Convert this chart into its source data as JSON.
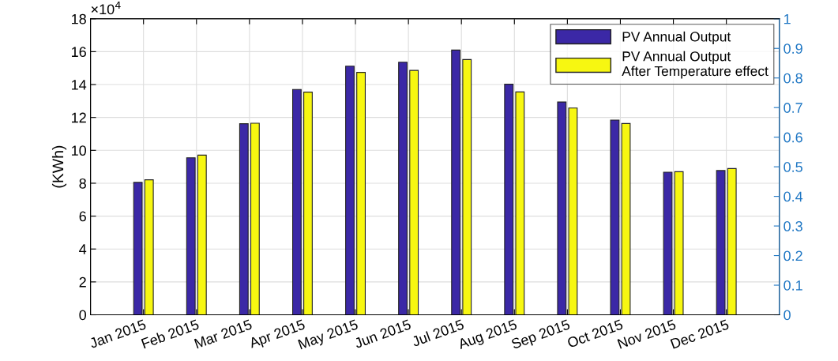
{
  "chart_data": {
    "type": "bar",
    "ylabel": "(KWh)",
    "annotations": [
      "×10$^{4}$"
    ],
    "categories": [
      "Jan 2015",
      "Feb 2015",
      "Mar 2015",
      "Apr 2015",
      "May 2015",
      "Jun 2015",
      "Jul 2015",
      "Aug 2015",
      "Sep 2015",
      "Oct 2015",
      "Nov 2015",
      "Dec 2015"
    ],
    "series": [
      {
        "name": "PV Annual Output",
        "color": "#3b28a6",
        "values": [
          8.05,
          9.55,
          11.62,
          13.7,
          15.12,
          15.36,
          16.1,
          14.02,
          12.94,
          11.84,
          8.67,
          8.77
        ]
      },
      {
        "name": "PV Annual Output\nAfter Temperature effect",
        "color": "#f7f711",
        "values": [
          8.21,
          9.71,
          11.65,
          13.54,
          14.74,
          14.86,
          15.52,
          13.55,
          12.57,
          11.63,
          8.7,
          8.89
        ]
      }
    ],
    "ylim": [
      0,
      18
    ],
    "yticks": [
      0,
      2,
      4,
      6,
      8,
      10,
      12,
      14,
      16,
      18
    ],
    "y2lim": [
      0,
      1
    ],
    "y2ticks": [
      0,
      0.1,
      0.2,
      0.3,
      0.4,
      0.5,
      0.6,
      0.7,
      0.8,
      0.9,
      1
    ],
    "grid": true,
    "legend": "top right"
  }
}
